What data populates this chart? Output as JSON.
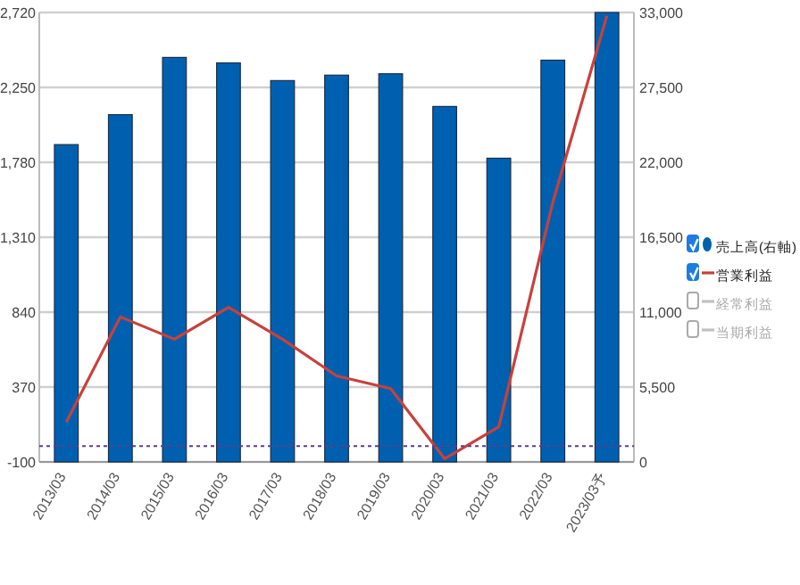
{
  "chart_data": {
    "type": "bar",
    "categories": [
      "2013/03",
      "2014/03",
      "2015/03",
      "2016/03",
      "2017/03",
      "2018/03",
      "2019/03",
      "2020/03",
      "2021/03",
      "2022/03",
      "2023/03予"
    ],
    "series": [
      {
        "name": "売上高(右軸)",
        "axis": "y2",
        "color": "#0060b0",
        "values": [
          23300,
          25500,
          29700,
          29300,
          28000,
          28400,
          28500,
          26100,
          22300,
          29500,
          33000
        ]
      },
      {
        "name": "営業利益",
        "type": "line",
        "color": "#c8413c",
        "values": [
          150,
          810,
          670,
          870,
          670,
          440,
          360,
          -80,
          120,
          1530,
          2700
        ]
      },
      {
        "name": "経常利益",
        "type": "line",
        "color": "#c0c0c0",
        "values": [
          null,
          null,
          null,
          null,
          null,
          null,
          null,
          null,
          null,
          null,
          null
        ]
      },
      {
        "name": "当期利益",
        "type": "line",
        "color": "#c0c0c0",
        "values": [
          null,
          null,
          null,
          null,
          null,
          null,
          null,
          null,
          null,
          null,
          null
        ]
      }
    ],
    "ylim": [
      -100,
      2720
    ],
    "yticks": [
      {
        "value": -100,
        "label": "-100"
      },
      {
        "value": 370,
        "label": "370"
      },
      {
        "value": 840,
        "label": "840"
      },
      {
        "value": 1310,
        "label": "1,310"
      },
      {
        "value": 1780,
        "label": "1,780"
      },
      {
        "value": 2250,
        "label": "2,250"
      },
      {
        "value": 2720,
        "label": "2,720"
      }
    ],
    "y2lim": [
      0,
      33000
    ],
    "y2ticks": [
      0,
      {
        "value": 5500,
        "label": "5,500"
      },
      {
        "value": 11000,
        "label": "11,000"
      },
      {
        "value": 16500,
        "label": "16,500"
      },
      {
        "value": 22000,
        "label": "22,000"
      },
      {
        "value": 27500,
        "label": "27,500"
      },
      {
        "value": 33000,
        "label": "33,000"
      }
    ],
    "ref_lines": [
      {
        "axis": "y",
        "value": 0,
        "color": "#5a3f8a",
        "line_style": "dotted"
      }
    ],
    "grid": "y",
    "legend": "right"
  }
}
